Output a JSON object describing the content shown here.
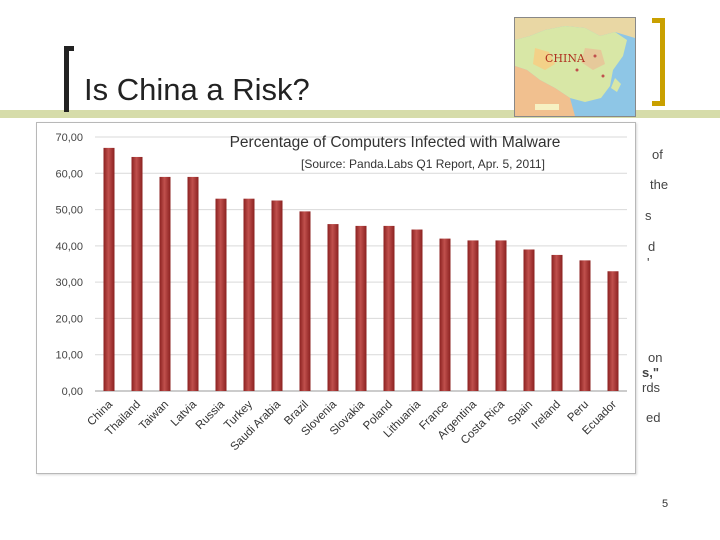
{
  "slide": {
    "title": "Is China a Risk?",
    "page_number": "5"
  },
  "map": {
    "label": "CHINA"
  },
  "background_text_fragments": [
    {
      "text": "of"
    },
    {
      "text": "the"
    },
    {
      "text": "s"
    },
    {
      "text": "d"
    },
    {
      "text": "'"
    },
    {
      "text": "on"
    },
    {
      "text": "s,\""
    },
    {
      "text": "rds"
    },
    {
      "text": "ed"
    }
  ],
  "colors": {
    "bar_fill": "#c0504d",
    "bar_dark": "#8b2120",
    "gridline": "#d9d9d9",
    "title_band": "#d6dcaa",
    "accent_bracket": "#c9a000"
  },
  "chart_data": {
    "type": "bar",
    "title": "Percentage of Computers Infected with Malware",
    "subtitle": "[Source: Panda.Labs Q1 Report, Apr. 5, 2011]",
    "categories": [
      "China",
      "Thailand",
      "Taiwan",
      "Latvia",
      "Russia",
      "Turkey",
      "Saudi Arabia",
      "Brazil",
      "Slovenia",
      "Slovakia",
      "Poland",
      "Lithuania",
      "France",
      "Argentina",
      "Costa Rica",
      "Spain",
      "Ireland",
      "Peru",
      "Ecuador"
    ],
    "values": [
      67,
      64.5,
      59,
      59,
      53,
      53,
      52.5,
      49.5,
      46,
      45.5,
      45.5,
      44.5,
      42,
      41.5,
      41.5,
      39,
      37.5,
      36,
      33
    ],
    "yticks": [
      "0,00",
      "10,00",
      "20,00",
      "30,00",
      "40,00",
      "50,00",
      "60,00",
      "70,00"
    ],
    "ylim": [
      0,
      70
    ],
    "grid": true,
    "legend": "none"
  }
}
